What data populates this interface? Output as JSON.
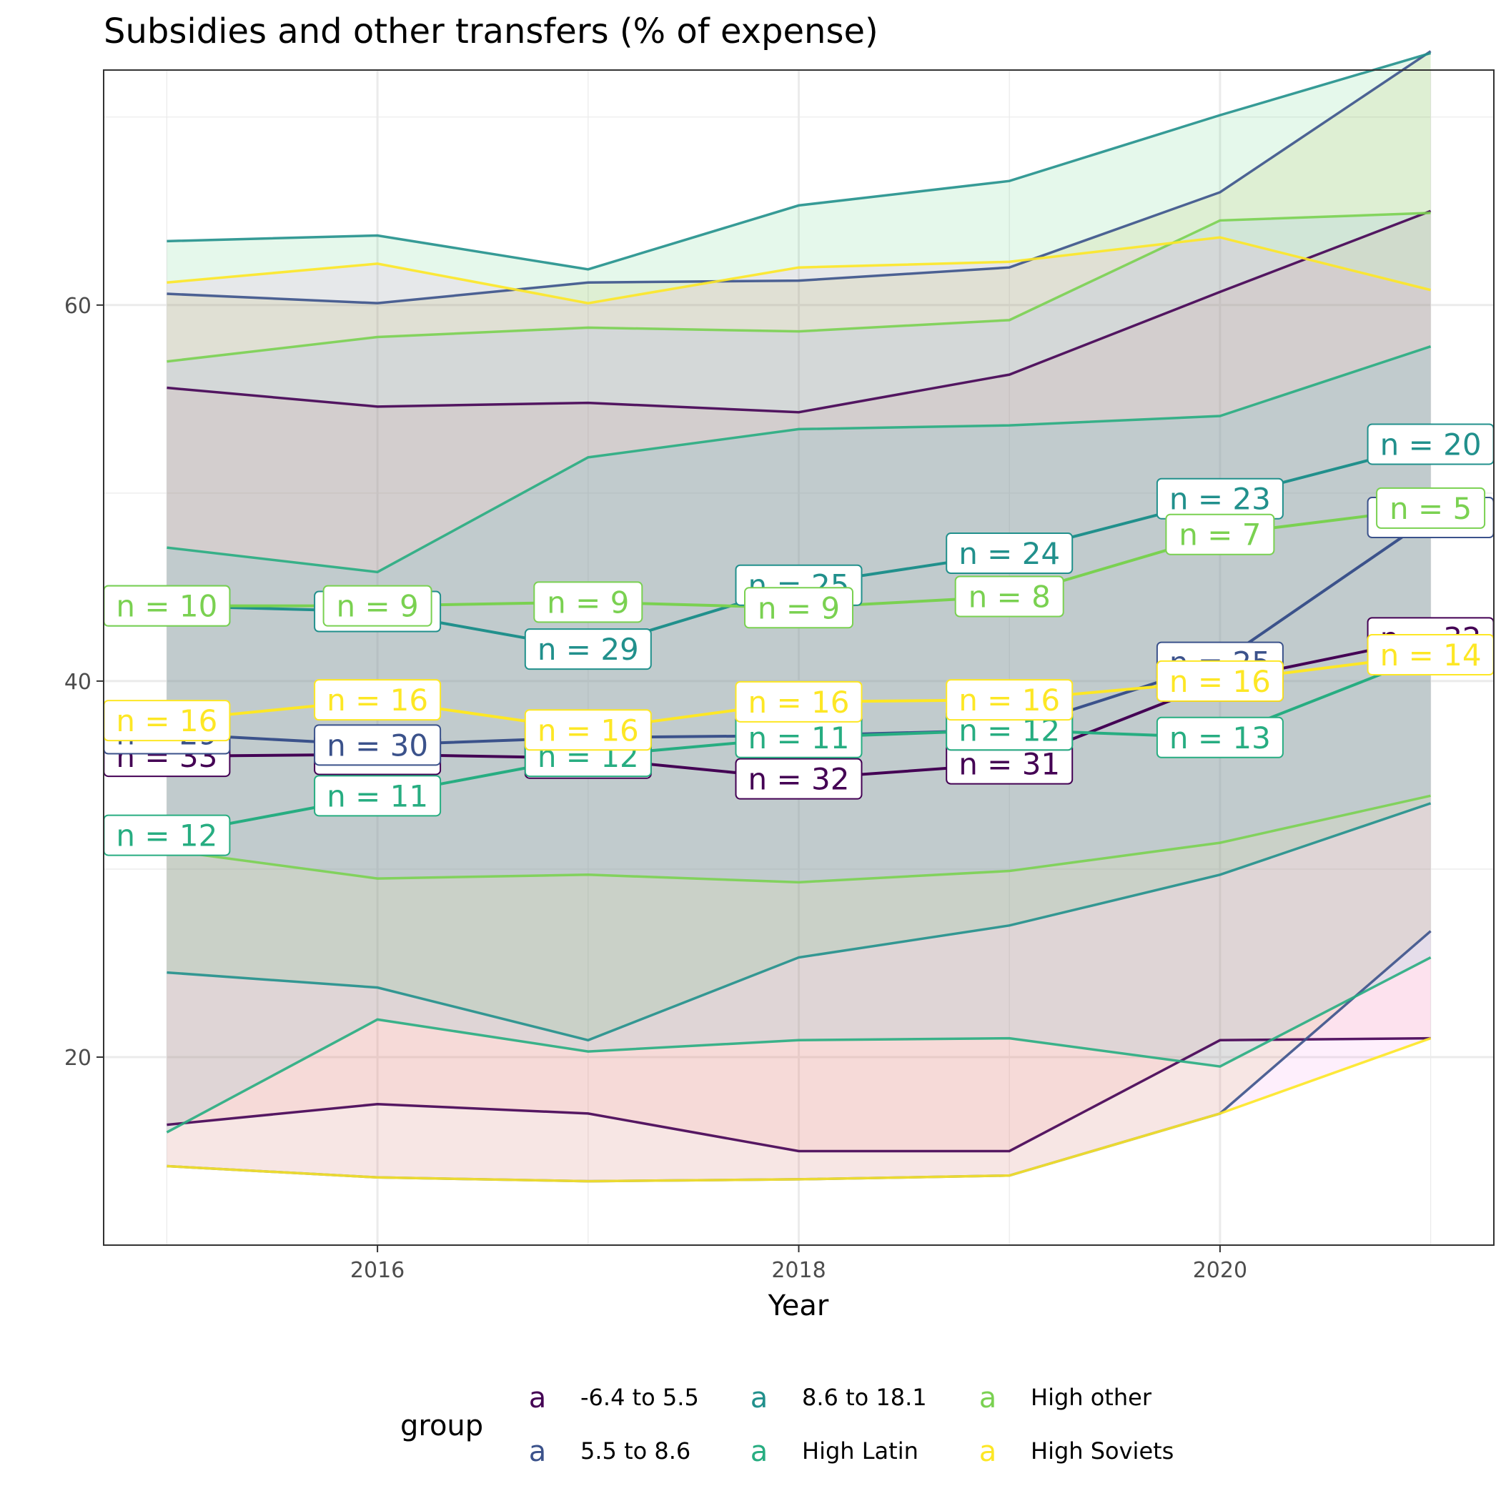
{
  "chart_data": {
    "type": "line",
    "title": "Subsidies and other transfers (% of expense)",
    "xlabel": "Year",
    "ylabel": "",
    "xlim": [
      2014.7,
      2021.3
    ],
    "ylim": [
      10,
      72.5
    ],
    "x_ticks": [
      2016,
      2018,
      2020
    ],
    "y_ticks": [
      20,
      40,
      60
    ],
    "x_minor_ticks": [
      2015,
      2017,
      2019,
      2021
    ],
    "y_minor_ticks": [
      30,
      50,
      70
    ],
    "grid": true,
    "legend": {
      "title": "group",
      "position": "bottom",
      "key_glyph": "a"
    },
    "x": [
      2015,
      2016,
      2017,
      2018,
      2019,
      2020,
      2021
    ],
    "series": [
      {
        "name": "-6.4 to 5.5",
        "color": "#440154",
        "mean": [
          36.0,
          36.1,
          35.9,
          34.8,
          35.6,
          40.0,
          42.3
        ],
        "upper": [
          55.6,
          54.6,
          54.8,
          54.3,
          56.3,
          60.7,
          65.0
        ],
        "lower": [
          16.4,
          17.5,
          17.0,
          15.0,
          15.0,
          20.9,
          21.0
        ],
        "fill": "#f8766d",
        "n_labels": [
          "n = 33",
          "n = 33",
          "n = 33",
          "n = 32",
          "n = 31",
          "n = 32",
          "n = 32"
        ]
      },
      {
        "name": "5.5 to 8.6",
        "color": "#3b528b",
        "mean": [
          37.2,
          36.6,
          37.0,
          37.1,
          37.4,
          41.0,
          48.7
        ],
        "upper": [
          60.6,
          60.1,
          61.2,
          61.3,
          62.0,
          66.0,
          73.5
        ],
        "lower": [
          14.2,
          13.6,
          13.4,
          13.5,
          13.7,
          17.0,
          26.7
        ],
        "fill": "#b79f00",
        "n_labels": [
          "n = 29",
          "n = 30",
          "n = 29",
          "n = 29",
          "n = 28",
          "n = 25",
          "n = 24"
        ]
      },
      {
        "name": "8.6 to 18.1",
        "color": "#21908c",
        "mean": [
          44.0,
          43.7,
          41.7,
          45.1,
          46.8,
          49.7,
          52.6
        ],
        "upper": [
          63.4,
          63.7,
          61.9,
          65.3,
          66.6,
          70.1,
          73.4
        ],
        "lower": [
          24.5,
          23.7,
          20.9,
          25.3,
          27.0,
          29.7,
          33.5
        ],
        "fill": "#00ba38",
        "n_labels": [
          "n = 29",
          "n = 29",
          "n = 29",
          "n = 25",
          "n = 24",
          "n = 23",
          "n = 20"
        ]
      },
      {
        "name": "High Latin",
        "color": "#27ad81",
        "mean": [
          31.8,
          33.9,
          36.0,
          37.0,
          37.4,
          37.0,
          41.4
        ],
        "upper": [
          47.1,
          45.8,
          51.9,
          53.4,
          53.6,
          54.1,
          57.8
        ],
        "lower": [
          16.0,
          22.0,
          20.3,
          20.9,
          21.0,
          19.5,
          25.3
        ],
        "fill": "#00bfc4",
        "n_labels": [
          "n = 12",
          "n = 11",
          "n = 12",
          "n = 11",
          "n = 12",
          "n = 13",
          "n = 9"
        ]
      },
      {
        "name": "High other",
        "color": "#7ad151",
        "mean": [
          44.0,
          44.0,
          44.2,
          43.9,
          44.5,
          47.8,
          49.2
        ],
        "upper": [
          57.0,
          58.3,
          58.8,
          58.6,
          59.2,
          64.5,
          64.9
        ],
        "lower": [
          31.0,
          29.5,
          29.7,
          29.3,
          29.9,
          31.4,
          33.9
        ],
        "fill": "#619cff",
        "n_labels": [
          "n = 10",
          "n = 9",
          "n = 9",
          "n = 9",
          "n = 8",
          "n = 7",
          "n = 5"
        ]
      },
      {
        "name": "High Soviets",
        "color": "#fde725",
        "mean": [
          37.9,
          39.0,
          37.4,
          38.9,
          39.0,
          40.0,
          41.4
        ],
        "upper": [
          61.2,
          62.2,
          60.1,
          62.0,
          62.3,
          63.6,
          60.8
        ],
        "lower": [
          14.2,
          13.6,
          13.4,
          13.5,
          13.7,
          17.0,
          21.0
        ],
        "fill": "#f564e3",
        "n_labels": [
          "n = 16",
          "n = 16",
          "n = 16",
          "n = 16",
          "n = 16",
          "n = 16",
          "n = 14"
        ]
      }
    ]
  }
}
